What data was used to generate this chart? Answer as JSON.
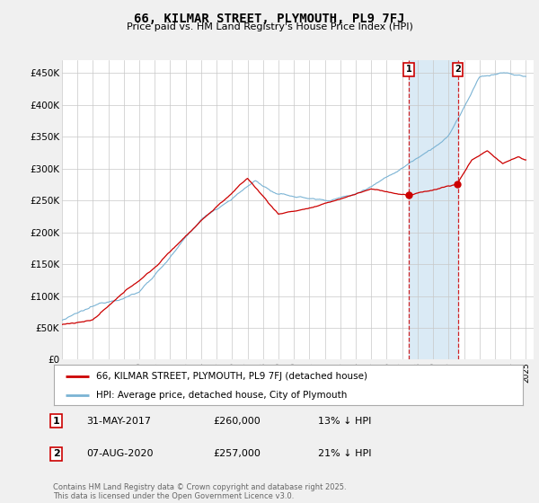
{
  "title": "66, KILMAR STREET, PLYMOUTH, PL9 7FJ",
  "subtitle": "Price paid vs. HM Land Registry's House Price Index (HPI)",
  "ylabel_ticks": [
    "£0",
    "£50K",
    "£100K",
    "£150K",
    "£200K",
    "£250K",
    "£300K",
    "£350K",
    "£400K",
    "£450K"
  ],
  "ytick_values": [
    0,
    50000,
    100000,
    150000,
    200000,
    250000,
    300000,
    350000,
    400000,
    450000
  ],
  "ylim": [
    0,
    470000
  ],
  "xlim_start": 1995.0,
  "xlim_end": 2025.5,
  "hpi_color": "#7ab3d4",
  "price_color": "#cc0000",
  "shade_color": "#daeaf5",
  "marker1_date": 2017.42,
  "marker2_date": 2020.6,
  "marker1_label": "31-MAY-2017",
  "marker1_price": "£260,000",
  "marker1_pct": "13% ↓ HPI",
  "marker2_label": "07-AUG-2020",
  "marker2_price": "£257,000",
  "marker2_pct": "21% ↓ HPI",
  "legend_line1": "66, KILMAR STREET, PLYMOUTH, PL9 7FJ (detached house)",
  "legend_line2": "HPI: Average price, detached house, City of Plymouth",
  "footnote": "Contains HM Land Registry data © Crown copyright and database right 2025.\nThis data is licensed under the Open Government Licence v3.0.",
  "background_color": "#f0f0f0",
  "plot_bg_color": "#ffffff"
}
